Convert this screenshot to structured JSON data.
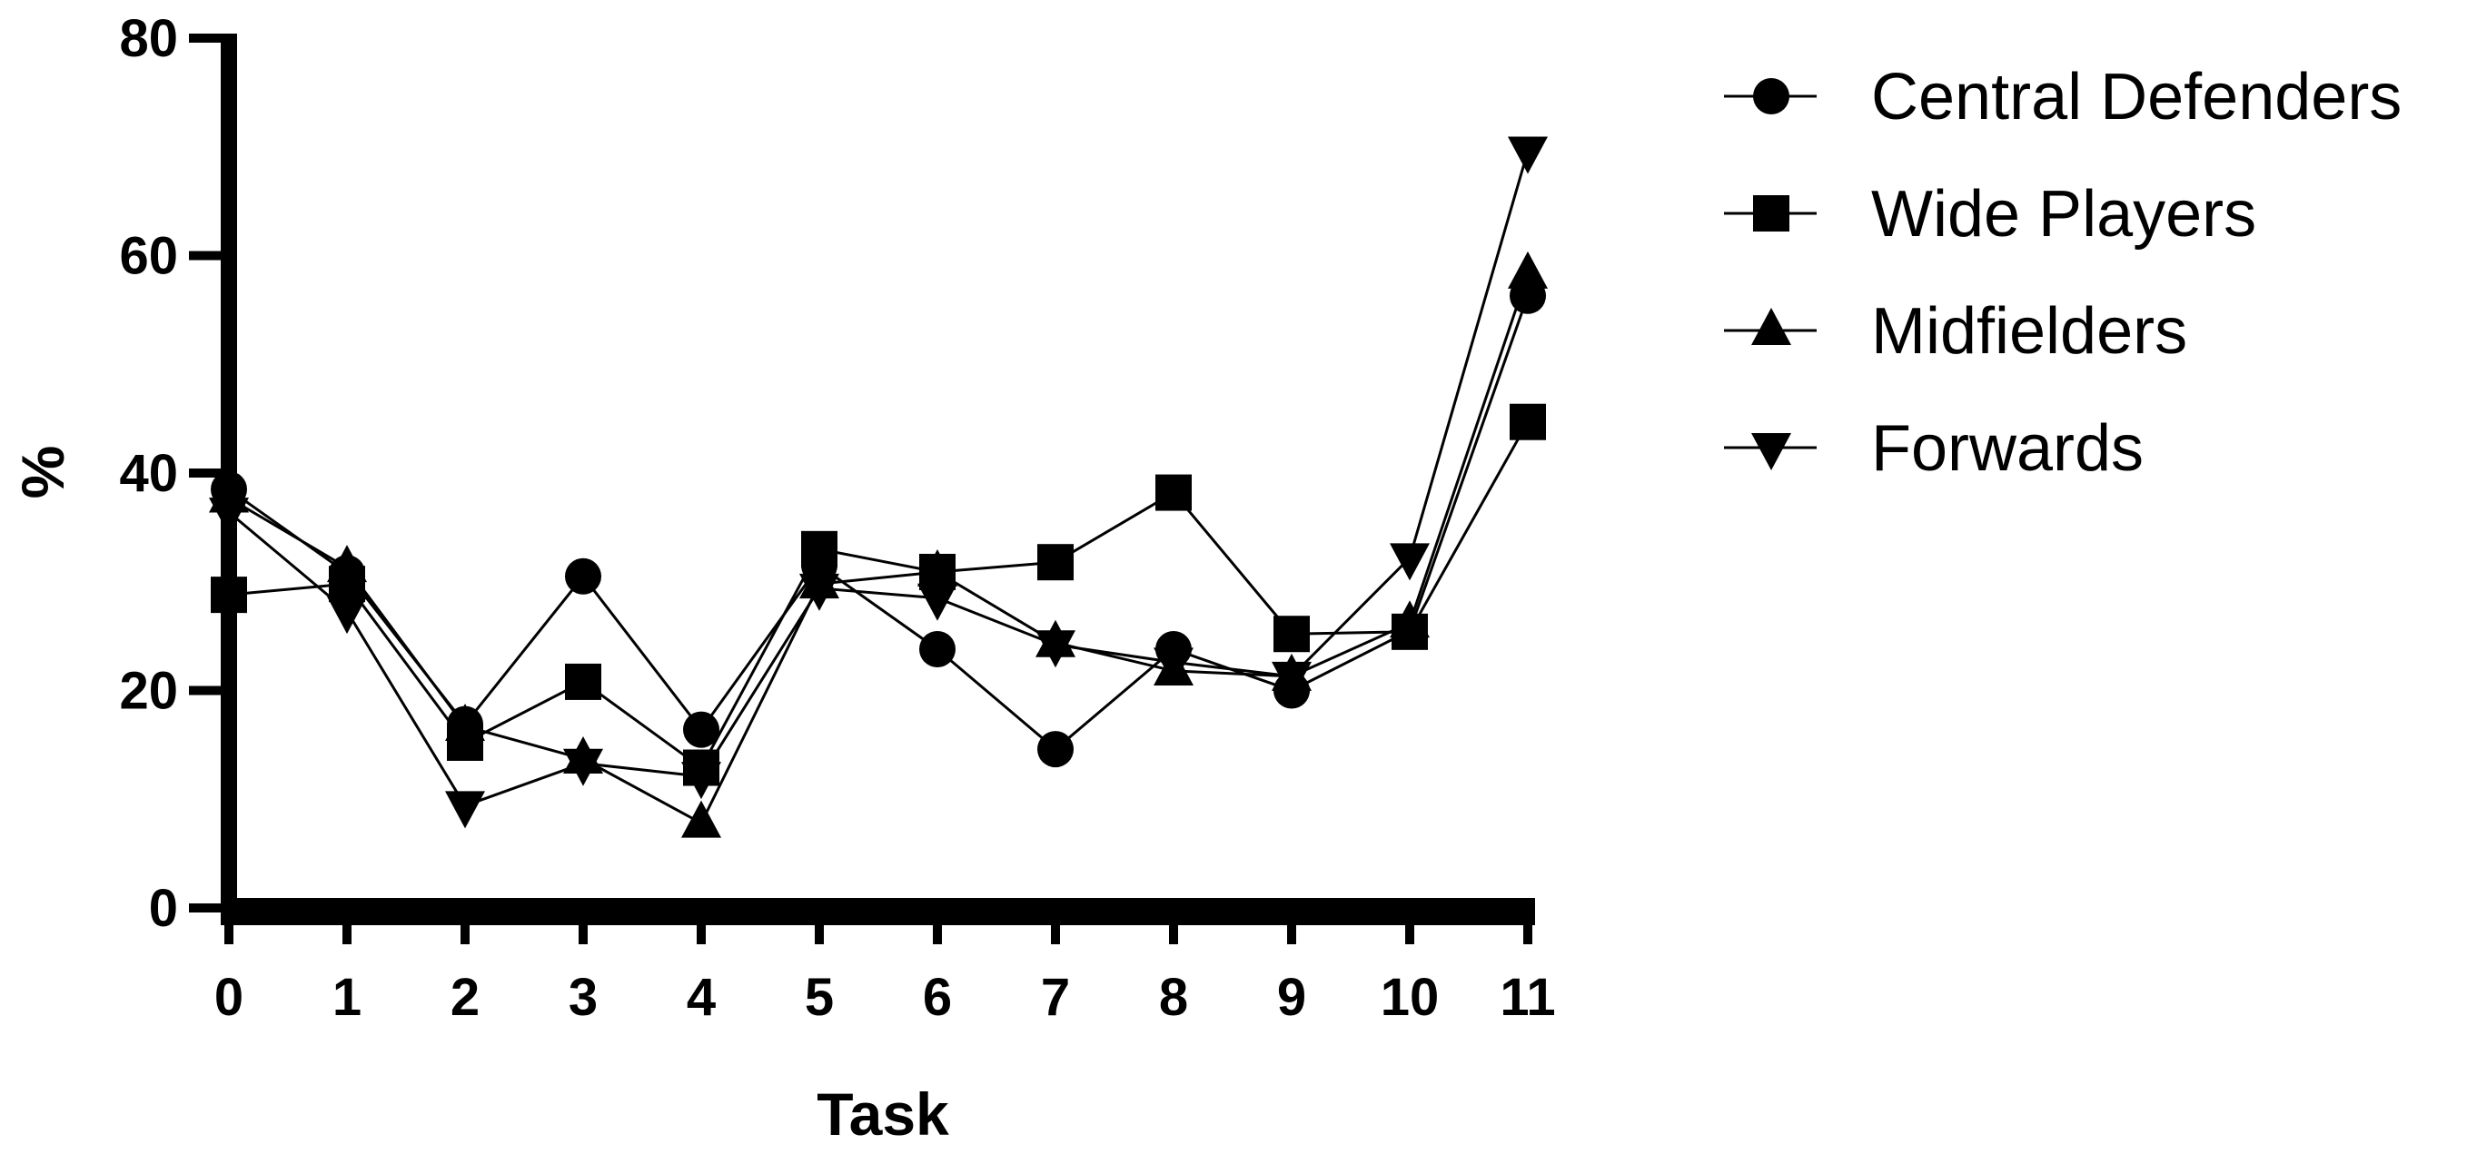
{
  "chart_data": {
    "type": "line",
    "title": "",
    "xlabel": "Task",
    "ylabel": "%",
    "xlim": [
      0,
      11
    ],
    "ylim": [
      0,
      80
    ],
    "x": [
      0,
      1,
      2,
      3,
      4,
      5,
      6,
      7,
      8,
      9,
      10,
      11
    ],
    "x_ticks": [
      "0",
      "1",
      "2",
      "3",
      "4",
      "5",
      "6",
      "7",
      "8",
      "9",
      "10",
      "11"
    ],
    "y_ticks": [
      "0",
      "20",
      "40",
      "60",
      "80"
    ],
    "grid": false,
    "legend_position": "right",
    "series": [
      {
        "name": "Central Defenders",
        "marker": "circle",
        "values": [
          38.5,
          30.8,
          16.9,
          30.5,
          16.4,
          31.5,
          23.8,
          14.6,
          23.8,
          20.0,
          25.5,
          56.3
        ]
      },
      {
        "name": "Wide Players",
        "marker": "square",
        "values": [
          28.8,
          29.8,
          15.2,
          20.8,
          12.9,
          33.0,
          30.9,
          31.8,
          38.2,
          25.2,
          25.4,
          44.7
        ]
      },
      {
        "name": "Midfielders",
        "marker": "triangle-up",
        "values": [
          37.7,
          31.3,
          16.7,
          13.7,
          7.8,
          29.8,
          30.9,
          24.4,
          21.8,
          21.3,
          26.2,
          58.3
        ]
      },
      {
        "name": "Forwards",
        "marker": "triangle-down",
        "values": [
          36.4,
          27.3,
          9.4,
          13.3,
          12.1,
          29.4,
          28.5,
          24.2,
          22.6,
          21.3,
          32.2,
          69.6
        ]
      }
    ]
  }
}
